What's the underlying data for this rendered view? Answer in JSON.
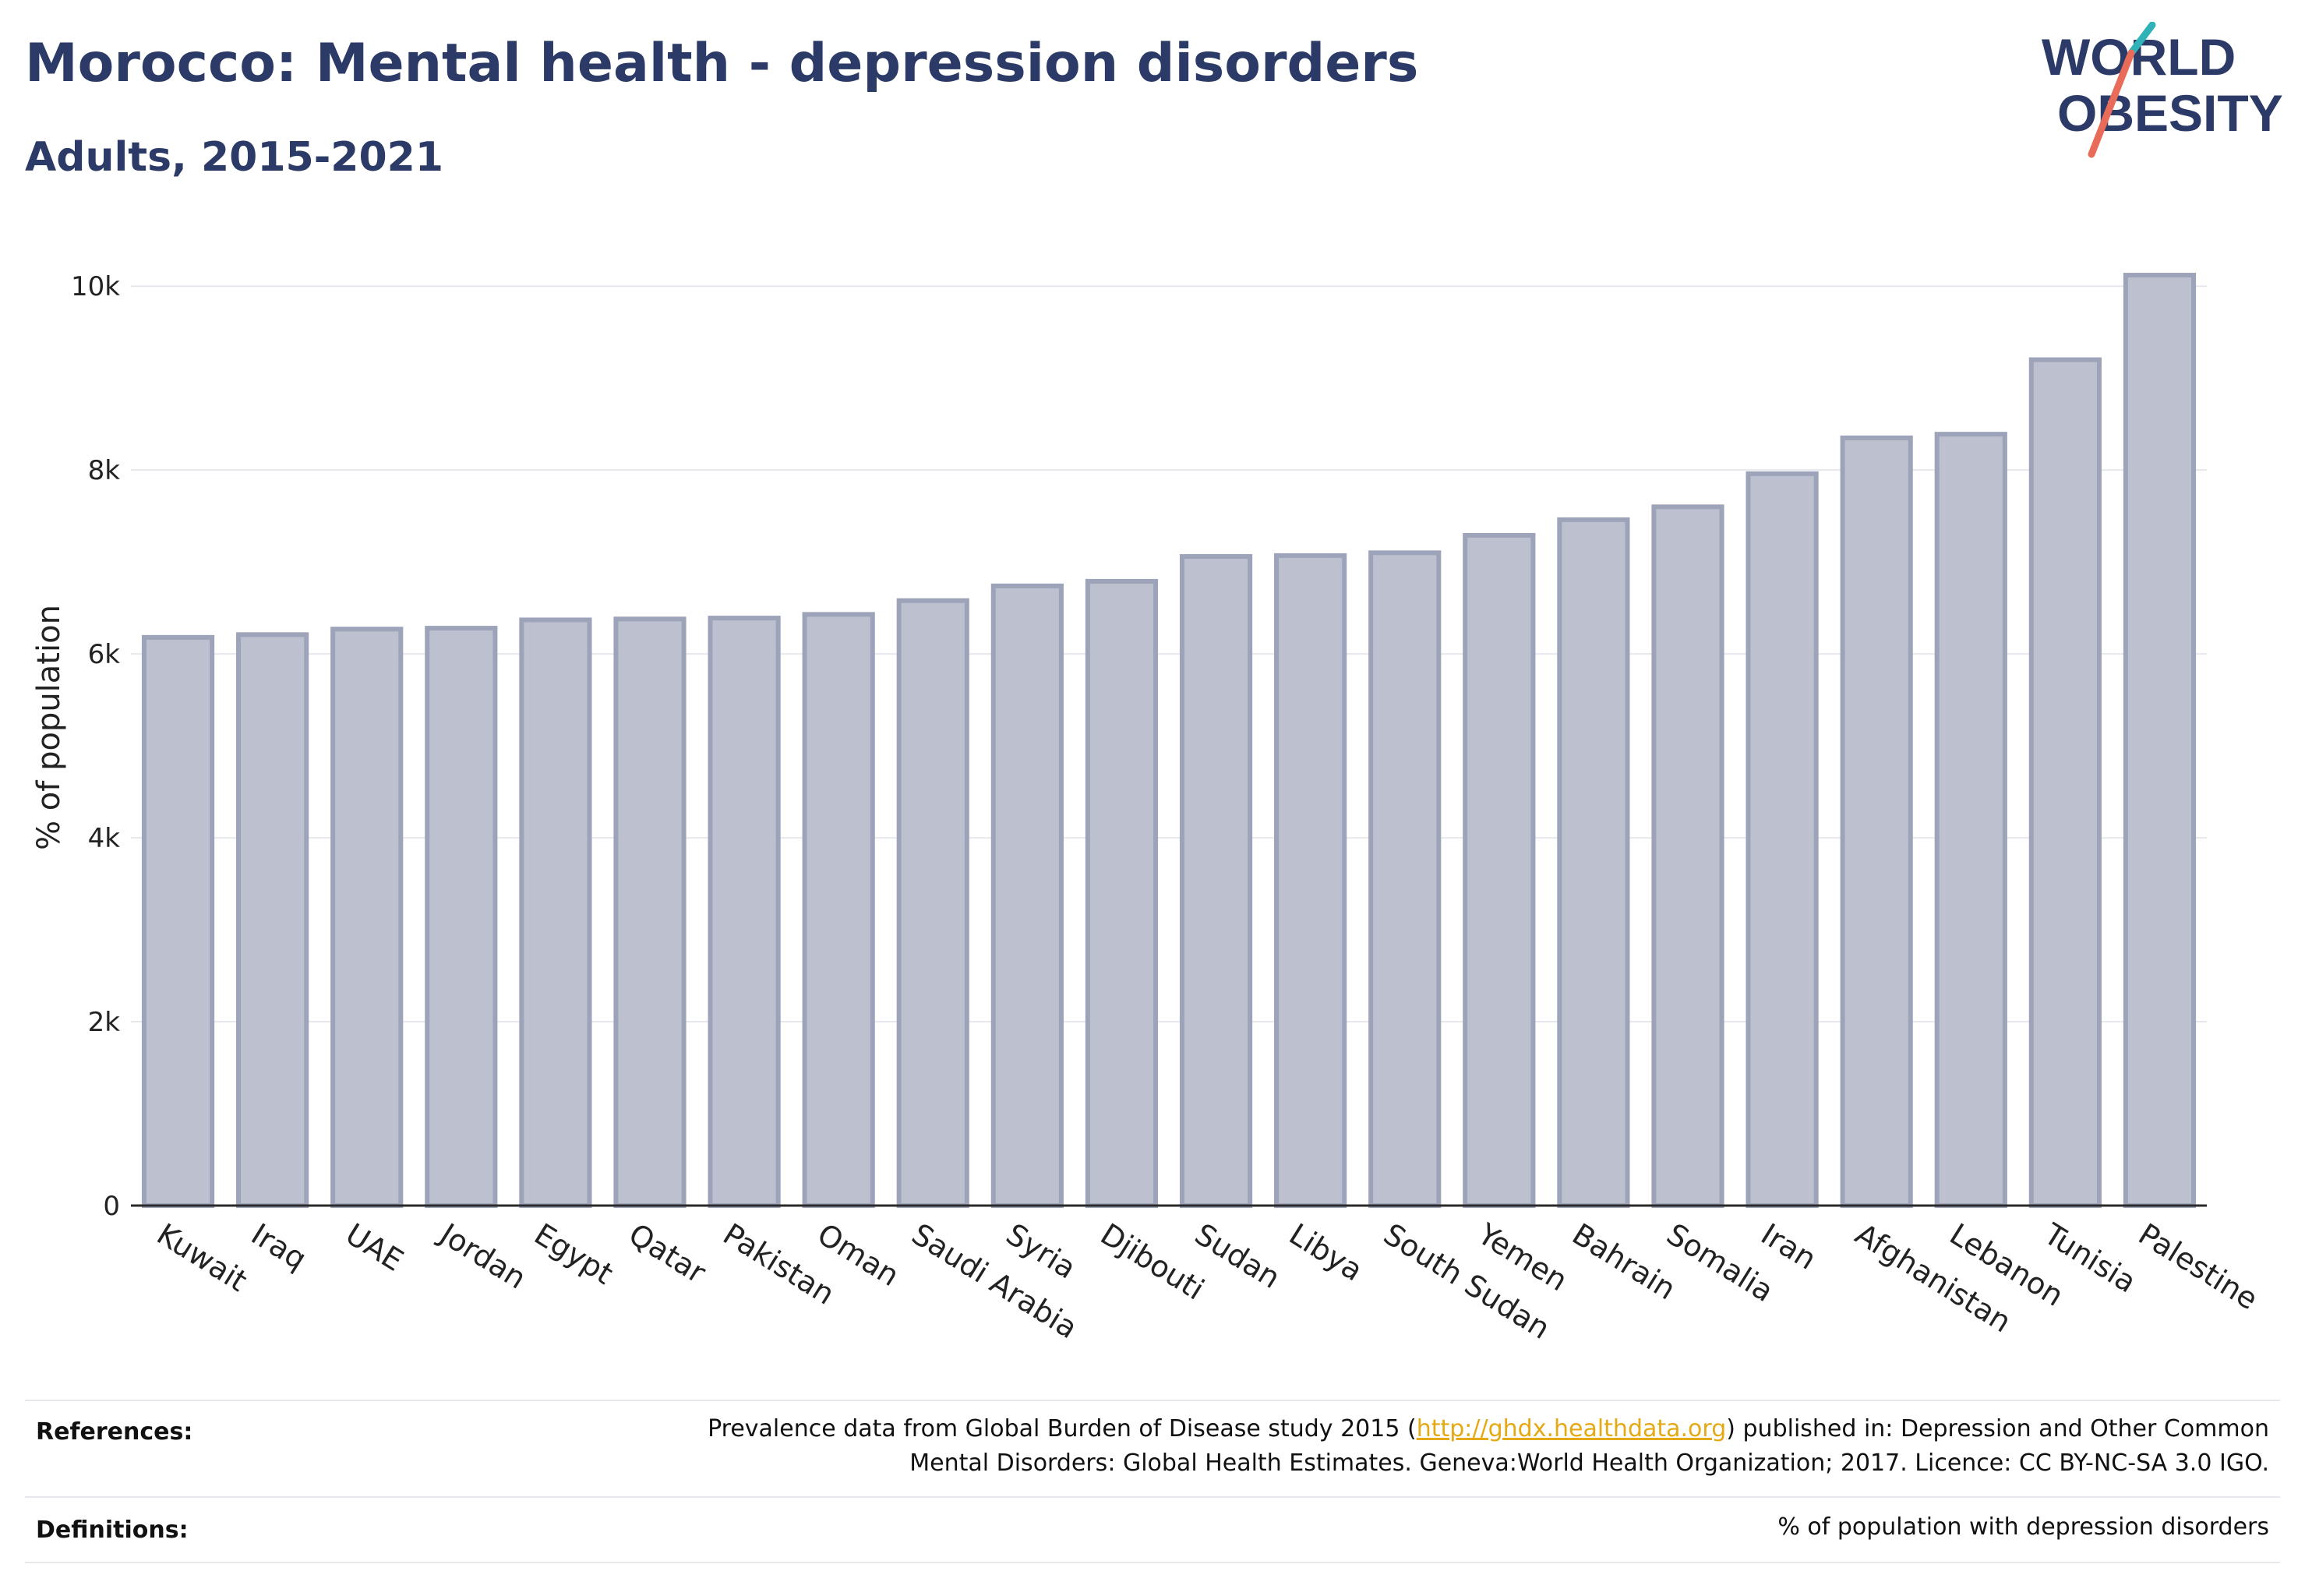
{
  "header": {
    "title": "Morocco: Mental health - depression disorders",
    "subtitle": "Adults, 2015-2021"
  },
  "logo": {
    "line1": "WORLD",
    "line2": "OBESITY",
    "colors": {
      "text": "#2b3a66",
      "teal": "#2fb3b8",
      "coral": "#e96b5a"
    }
  },
  "chart_data": {
    "type": "bar",
    "ylabel": "% of population",
    "xlabel": "",
    "ylim": [
      0,
      10400
    ],
    "yticks": [
      0,
      2000,
      4000,
      6000,
      8000,
      10000
    ],
    "ytick_labels": [
      "0",
      "2k",
      "4k",
      "6k",
      "8k",
      "10k"
    ],
    "grid": true,
    "categories": [
      "Kuwait",
      "Iraq",
      "UAE",
      "Jordan",
      "Egypt",
      "Qatar",
      "Pakistan",
      "Oman",
      "Saudi Arabia",
      "Syria",
      "Djibouti",
      "Sudan",
      "Libya",
      "South Sudan",
      "Yemen",
      "Bahrain",
      "Somalia",
      "Iran",
      "Afghanistan",
      "Lebanon",
      "Tunisia",
      "Palestine"
    ],
    "values": [
      6180,
      6210,
      6270,
      6280,
      6370,
      6380,
      6390,
      6430,
      6580,
      6740,
      6790,
      7060,
      7070,
      7100,
      7290,
      7460,
      7600,
      7960,
      8350,
      8390,
      9200,
      10120
    ],
    "colors": {
      "bar_fill": "#bcc0cf",
      "bar_edge": "#9da3b8",
      "grid": "#e6e8ee",
      "axis": "#2a2a2a"
    }
  },
  "references": {
    "label": "References:",
    "line1_before": "Prevalence data from Global Burden of Disease study 2015 (",
    "link": "http://ghdx.healthdata.org",
    "line1_after": ") published in: Depression and Other Common",
    "line2": "Mental Disorders: Global Health Estimates. Geneva:World Health Organization; 2017. Licence: CC BY-NC-SA 3.0 IGO."
  },
  "definitions": {
    "label": "Definitions:",
    "text": "% of population with depression disorders"
  }
}
